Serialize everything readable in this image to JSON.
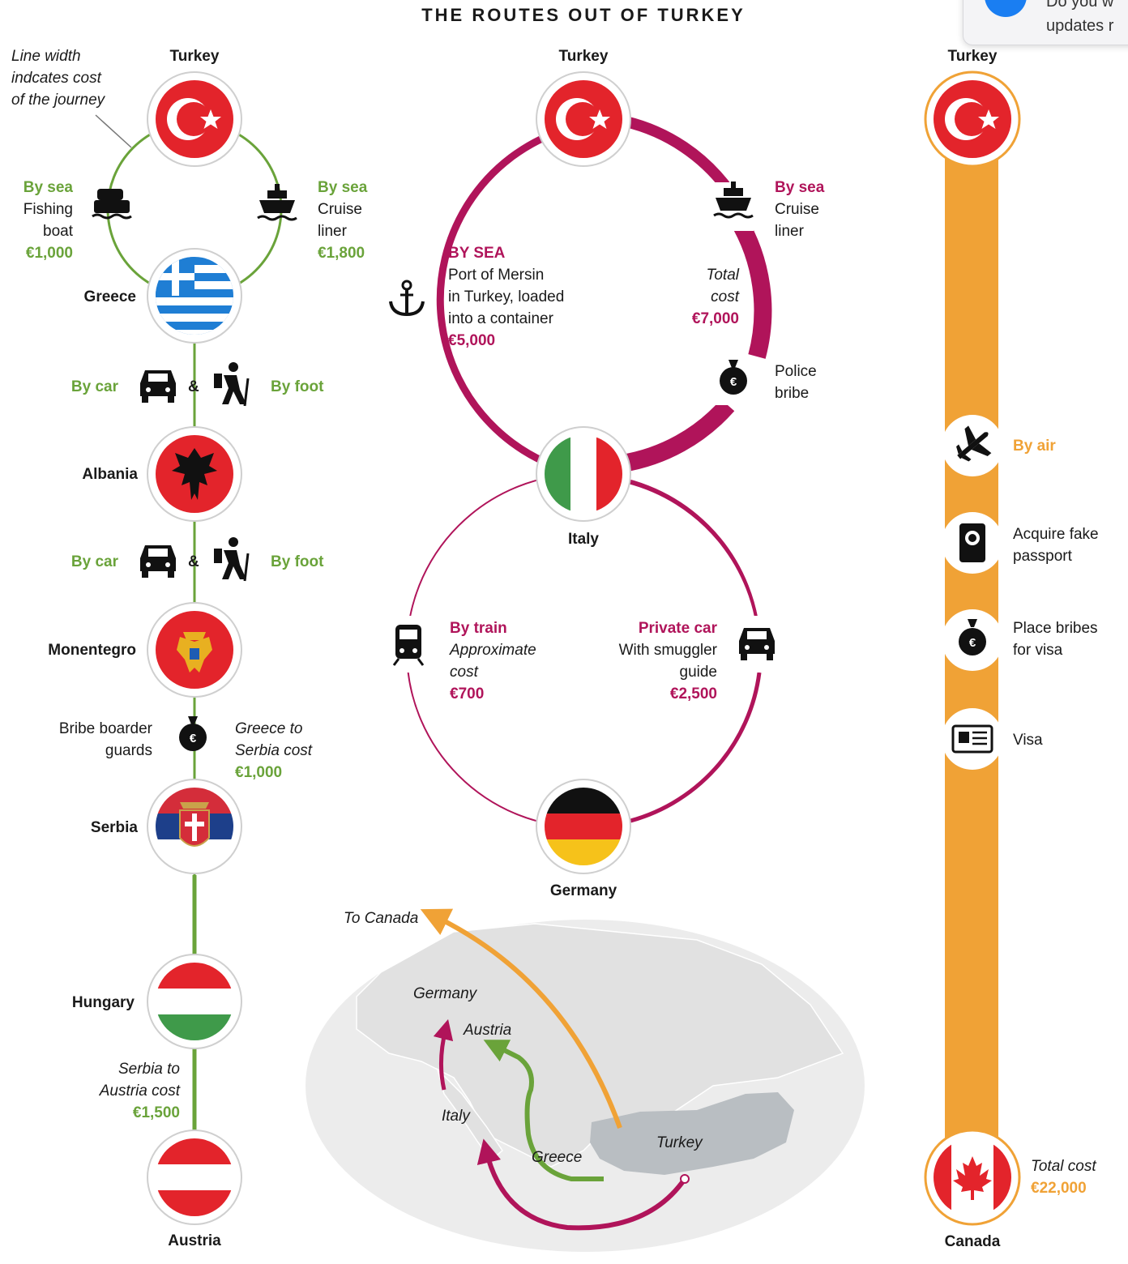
{
  "title": "THE ROUTES OUT OF TURKEY",
  "notification": {
    "line1": "Do you w",
    "line2": "updates r"
  },
  "left_route": {
    "note": [
      "Line width",
      "indcates cost",
      "of the journey"
    ],
    "stops": {
      "turkey": "Turkey",
      "greece": "Greece",
      "albania": "Albania",
      "montenegro": "Monentegro",
      "serbia": "Serbia",
      "hungary": "Hungary",
      "austria": "Austria"
    },
    "sea_left": {
      "mode": "By sea",
      "line1": "Fishing",
      "line2": "boat",
      "cost": "€1,000"
    },
    "sea_right": {
      "mode": "By sea",
      "line1": "Cruise",
      "line2": "liner",
      "cost": "€1,800"
    },
    "leg1": {
      "car": "By car",
      "amp": "&",
      "foot": "By foot"
    },
    "leg2": {
      "car": "By car",
      "amp": "&",
      "foot": "By foot"
    },
    "bribe": [
      "Bribe boarder",
      "guards"
    ],
    "greece_serbia": {
      "line1": "Greece to",
      "line2": "Serbia cost",
      "cost": "€1,000"
    },
    "serbia_austria": {
      "line1": "Serbia to",
      "line2": "Austria cost",
      "cost": "€1,500"
    }
  },
  "middle_route": {
    "stops": {
      "turkey": "Turkey",
      "italy": "Italy",
      "germany": "Germany"
    },
    "by_sea": {
      "heading": "BY SEA",
      "line1": "Port of Mersin",
      "line2": "in Turkey, loaded",
      "line3": "into a container",
      "cost": "€5,000"
    },
    "cruise": {
      "mode": "By sea",
      "line1": "Cruise",
      "line2": "liner"
    },
    "total": {
      "line1": "Total",
      "line2": "cost",
      "cost": "€7,000"
    },
    "police": [
      "Police",
      "bribe"
    ],
    "train": {
      "mode": "By train",
      "line1": "Approximate",
      "line2": "cost",
      "cost": "€700"
    },
    "car": {
      "mode": "Private car",
      "line1": "With smuggler",
      "line2": "guide",
      "cost": "€2,500"
    }
  },
  "right_route": {
    "stops": {
      "turkey": "Turkey",
      "canada": "Canada"
    },
    "air": "By air",
    "passport": [
      "Acquire fake",
      "passport"
    ],
    "bribes": [
      "Place bribes",
      "for visa"
    ],
    "visa": "Visa",
    "total": {
      "line1": "Total cost",
      "cost": "€22,000"
    }
  },
  "map": {
    "to_canada": "To Canada",
    "labels": {
      "germany": "Germany",
      "austria": "Austria",
      "italy": "Italy",
      "greece": "Greece",
      "turkey": "Turkey"
    }
  },
  "colors": {
    "green": "#6aa33a",
    "magenta": "#b0145a",
    "orange": "#f0a236",
    "flag_red": "#e3242b",
    "map_land": "#e9e9e9",
    "turkey_land": "#b9bec2"
  }
}
